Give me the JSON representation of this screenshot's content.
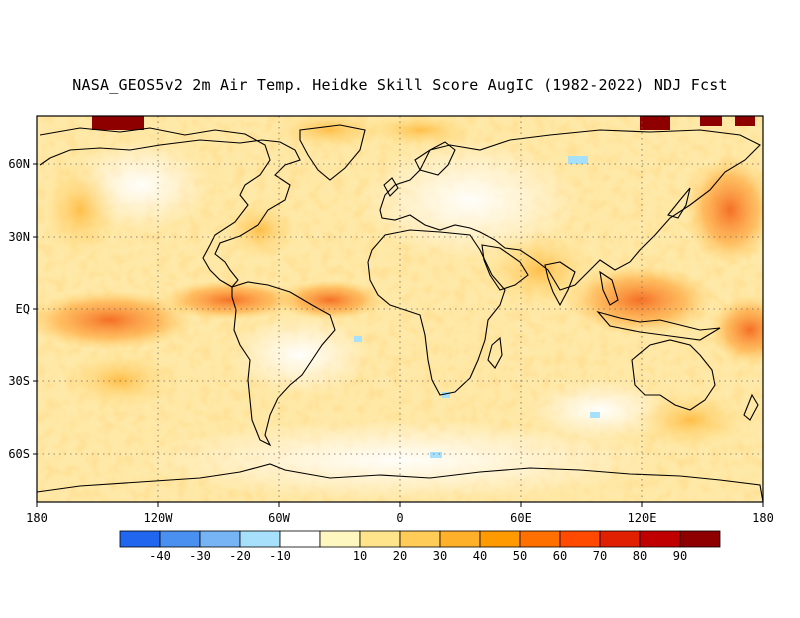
{
  "title": "NASA_GEOS5v2 2m Air Temp. Heidke Skill Score AugIC (1982-2022) NDJ Fcst",
  "map": {
    "projection": "equirectangular",
    "lon_range": [
      -180,
      180
    ],
    "lat_range": [
      -80,
      80
    ],
    "lon_ticks": [
      {
        "lon": -180,
        "label": "180"
      },
      {
        "lon": -120,
        "label": "120W"
      },
      {
        "lon": -60,
        "label": "60W"
      },
      {
        "lon": 0,
        "label": "0"
      },
      {
        "lon": 60,
        "label": "60E"
      },
      {
        "lon": 120,
        "label": "120E"
      },
      {
        "lon": 180,
        "label": "180"
      }
    ],
    "lat_ticks": [
      {
        "lat": 60,
        "label": "60N"
      },
      {
        "lat": 30,
        "label": "30N"
      },
      {
        "lat": 0,
        "label": "EQ"
      },
      {
        "lat": -30,
        "label": "30S"
      },
      {
        "lat": -60,
        "label": "60S"
      }
    ],
    "grid": "dotted"
  },
  "colorbar": {
    "colors": [
      "#2166ee",
      "#4a90f0",
      "#76b4f6",
      "#a6e0fb",
      "#ffffff",
      "#fff6c0",
      "#ffe48c",
      "#ffcc58",
      "#ffb02a",
      "#ff9a00",
      "#ff7000",
      "#ff4a00",
      "#e02000",
      "#c00000",
      "#8e0000"
    ],
    "labels": [
      "-40",
      "-30",
      "-20",
      "-10",
      "10",
      "20",
      "30",
      "40",
      "50",
      "60",
      "70",
      "80",
      "90"
    ]
  }
}
